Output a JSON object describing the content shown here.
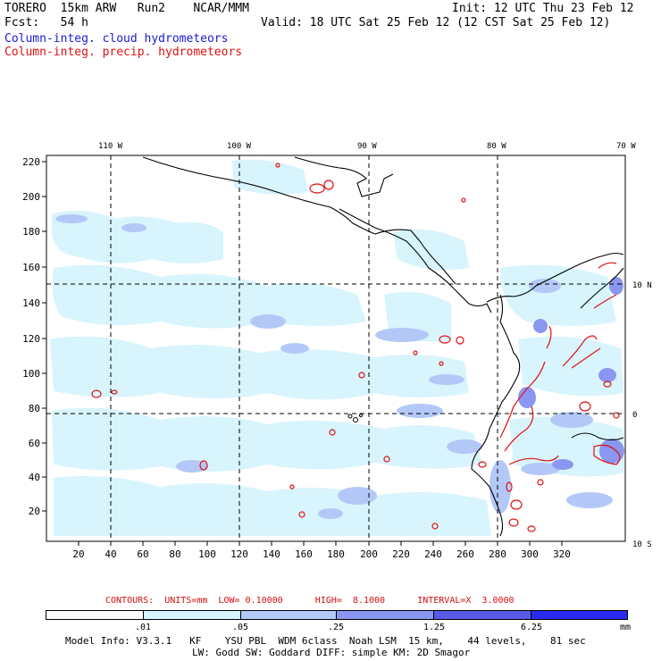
{
  "header": {
    "model": "TORERO  15km ARW   Run2    NCAR/MMM",
    "init": "Init: 12 UTC Thu 23 Feb 12",
    "fcst": "Fcst:   54 h",
    "valid": "Valid: 18 UTC Sat 25 Feb 12 (12 CST Sat 25 Feb 12)",
    "field1": "Column-integ. cloud hydrometeors",
    "field2": "Column-integ. precip. hydrometeors"
  },
  "axes": {
    "lon_top": [
      "110 W",
      "100 W",
      "90 W",
      "80 W",
      "70 W"
    ],
    "lat_right": [
      "10 N",
      "0",
      "10 S"
    ],
    "x_ticks": [
      "20",
      "40",
      "60",
      "80",
      "100",
      "120",
      "140",
      "160",
      "180",
      "200",
      "220",
      "240",
      "260",
      "280",
      "300",
      "320"
    ],
    "y_ticks": [
      "20",
      "40",
      "60",
      "80",
      "100",
      "120",
      "140",
      "160",
      "180",
      "200",
      "220"
    ]
  },
  "contours": {
    "label": "CONTOURS:  UNITS=mm  LOW= 0.10000      HIGH=  8.1000      INTERVAL=X  3.0000"
  },
  "colorbar": {
    "levels": [
      ".01",
      ".05",
      ".25",
      "1.25",
      "6.25"
    ],
    "unit": "mm",
    "colors": [
      "#ffffff",
      "#d8f4fc",
      "#b4c8f8",
      "#8a96f0",
      "#5a5ae8",
      "#2a2af0"
    ]
  },
  "footer": {
    "line1": "Model Info: V3.3.1   KF    YSU PBL  WDM 6class  Noah LSM  15 km,    44 levels,    81 sec",
    "line2": "LW: Godd SW: Goddard DIFF: simple KM: 2D Smagor"
  }
}
